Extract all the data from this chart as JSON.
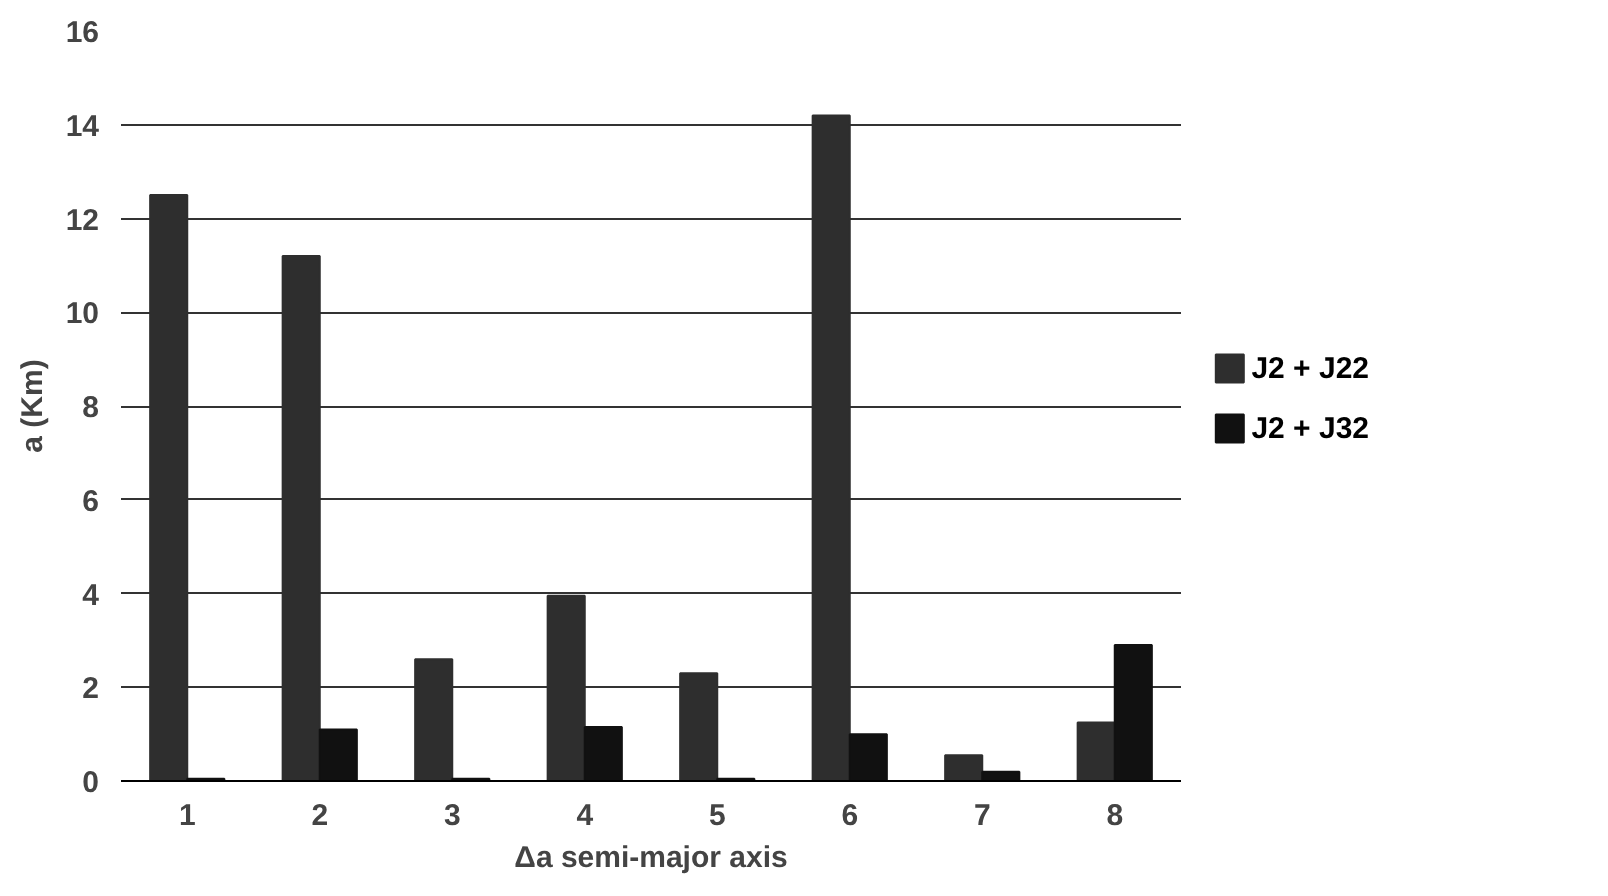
{
  "chart_data": {
    "type": "bar",
    "xlabel": "Δa semi-major axis",
    "ylabel": "a (Km)",
    "categories": [
      "1",
      "2",
      "3",
      "4",
      "5",
      "6",
      "7",
      "8"
    ],
    "series": [
      {
        "name": "J2 + J22",
        "color": "#2e2e2e",
        "values": [
          12.5,
          11.2,
          2.6,
          3.95,
          2.3,
          14.2,
          0.55,
          1.25
        ]
      },
      {
        "name": "J2 + J32",
        "color": "#111111",
        "values": [
          0.05,
          1.1,
          0.05,
          1.15,
          0.05,
          1.0,
          0.2,
          2.9
        ]
      }
    ],
    "ylim": [
      0,
      16
    ],
    "yticks": [
      0,
      2,
      4,
      6,
      8,
      10,
      12,
      14,
      16
    ],
    "grid": "y",
    "legend": "right"
  }
}
